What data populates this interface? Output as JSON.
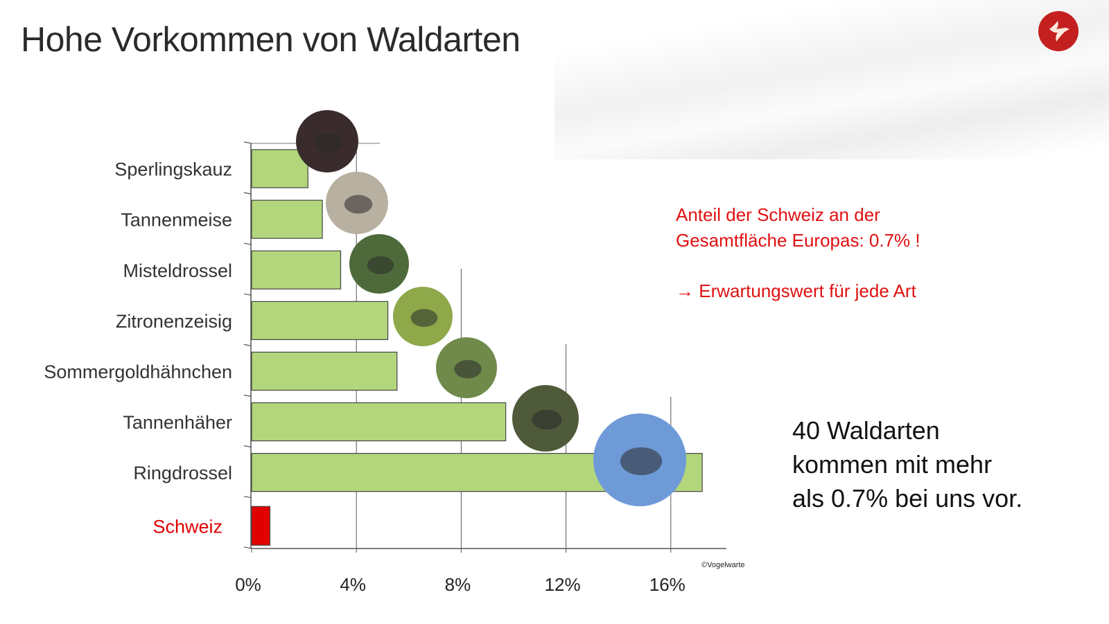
{
  "title": "Hohe Vorkommen von Waldarten",
  "logo": "Vogelwarte bird logo",
  "notes": {
    "line1": "Anteil der Schweiz an der",
    "line2": "Gesamtfläche Europas: 0.7% !",
    "arrow_line": "Erwartungswert für jede Art",
    "arrow_icon": "→"
  },
  "summary": {
    "line1": "40 Waldarten",
    "line2": "kommen mit mehr",
    "line3": "als 0.7% bei uns vor."
  },
  "copyright": "©Vogelwarte",
  "colors": {
    "bar": "#b3d67d",
    "highlight": "#e00000",
    "accent": "#e01010"
  },
  "chart_data": {
    "type": "bar",
    "orientation": "horizontal",
    "categories": [
      "Sperlingskauz",
      "Tannenmeise",
      "Misteldrossel",
      "Zitronenzeisig",
      "Sommergoldhähnchen",
      "Tannenhäher",
      "Ringdrossel",
      "Schweiz"
    ],
    "values": [
      2.15,
      2.7,
      3.4,
      5.2,
      5.55,
      9.7,
      17.2,
      0.7
    ],
    "highlight": "Schweiz",
    "xlim": [
      0,
      18
    ],
    "xticks": [
      0,
      4,
      8,
      12,
      16
    ],
    "xtick_labels": [
      "0%",
      "4%",
      "8%",
      "12%",
      "16%"
    ],
    "photo_colors": [
      "#3a2c2c",
      "#b8b0a0",
      "#4f6a3a",
      "#8ea84a",
      "#6f8a4a",
      "#4f5a3a",
      "#6e9ad8"
    ]
  }
}
